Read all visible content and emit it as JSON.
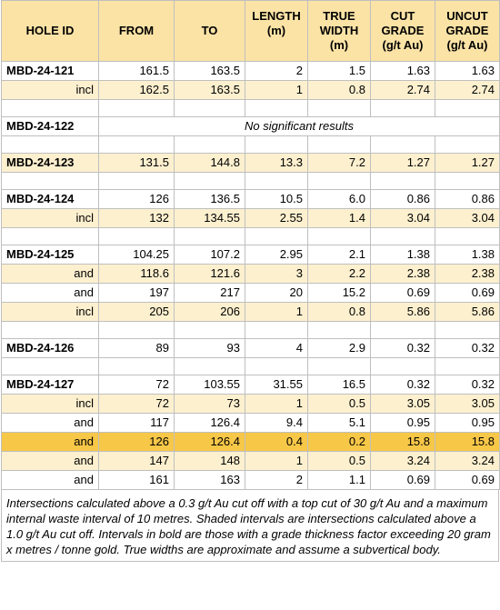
{
  "headers": {
    "hole_id": "HOLE ID",
    "from": "FROM",
    "to": "TO",
    "length_l1": "LENGTH",
    "length_l2": "(m)",
    "true_l1": "TRUE",
    "true_l2": "WIDTH",
    "true_l3": "(m)",
    "cut_l1": "CUT",
    "cut_l2": "GRADE",
    "cut_l3": "(g/t Au)",
    "uncut_l1": "UNCUT",
    "uncut_l2": "GRADE",
    "uncut_l3": "(g/t Au)"
  },
  "rows": {
    "r1": {
      "label": "MBD-24-121",
      "from": "161.5",
      "to": "163.5",
      "length": "2",
      "width": "1.5",
      "cut": "1.63",
      "uncut": "1.63"
    },
    "r2": {
      "label": "incl",
      "from": "162.5",
      "to": "163.5",
      "length": "1",
      "width": "0.8",
      "cut": "2.74",
      "uncut": "2.74"
    },
    "r3": {
      "label": "MBD-24-122",
      "note": "No significant results"
    },
    "r4": {
      "label": "MBD-24-123",
      "from": "131.5",
      "to": "144.8",
      "length": "13.3",
      "width": "7.2",
      "cut": "1.27",
      "uncut": "1.27"
    },
    "r5": {
      "label": "MBD-24-124",
      "from": "126",
      "to": "136.5",
      "length": "10.5",
      "width": "6.0",
      "cut": "0.86",
      "uncut": "0.86"
    },
    "r6": {
      "label": "incl",
      "from": "132",
      "to": "134.55",
      "length": "2.55",
      "width": "1.4",
      "cut": "3.04",
      "uncut": "3.04"
    },
    "r7": {
      "label": "MBD-24-125",
      "from": "104.25",
      "to": "107.2",
      "length": "2.95",
      "width": "2.1",
      "cut": "1.38",
      "uncut": "1.38"
    },
    "r8": {
      "label": "and",
      "from": "118.6",
      "to": "121.6",
      "length": "3",
      "width": "2.2",
      "cut": "2.38",
      "uncut": "2.38"
    },
    "r9": {
      "label": "and",
      "from": "197",
      "to": "217",
      "length": "20",
      "width": "15.2",
      "cut": "0.69",
      "uncut": "0.69"
    },
    "r10": {
      "label": "incl",
      "from": "205",
      "to": "206",
      "length": "1",
      "width": "0.8",
      "cut": "5.86",
      "uncut": "5.86"
    },
    "r11": {
      "label": "MBD-24-126",
      "from": "89",
      "to": "93",
      "length": "4",
      "width": "2.9",
      "cut": "0.32",
      "uncut": "0.32"
    },
    "r12": {
      "label": "MBD-24-127",
      "from": "72",
      "to": "103.55",
      "length": "31.55",
      "width": "16.5",
      "cut": "0.32",
      "uncut": "0.32"
    },
    "r13": {
      "label": "incl",
      "from": "72",
      "to": "73",
      "length": "1",
      "width": "0.5",
      "cut": "3.05",
      "uncut": "3.05"
    },
    "r14": {
      "label": "and",
      "from": "117",
      "to": "126.4",
      "length": "9.4",
      "width": "5.1",
      "cut": "0.95",
      "uncut": "0.95"
    },
    "r15": {
      "label": "and",
      "from": "126",
      "to": "126.4",
      "length": "0.4",
      "width": "0.2",
      "cut": "15.8",
      "uncut": "15.8"
    },
    "r16": {
      "label": "and",
      "from": "147",
      "to": "148",
      "length": "1",
      "width": "0.5",
      "cut": "3.24",
      "uncut": "3.24"
    },
    "r17": {
      "label": "and",
      "from": "161",
      "to": "163",
      "length": "2",
      "width": "1.1",
      "cut": "0.69",
      "uncut": "0.69"
    }
  },
  "footnote": "Intersections calculated above a 0.3 g/t Au cut off with a top cut of 30 g/t Au and a maximum internal waste interval of 10 metres. Shaded intervals are intersections calculated above a 1.0 g/t Au cut off. Intervals in bold are those with a grade thickness factor exceeding 20 gram x metres / tonne gold. True widths are approximate and assume a subvertical body.",
  "colors": {
    "header": "#fbe3a6",
    "shaded": "#fdf0cf",
    "highlight": "#f7c748",
    "border": "#bfbfbf"
  }
}
